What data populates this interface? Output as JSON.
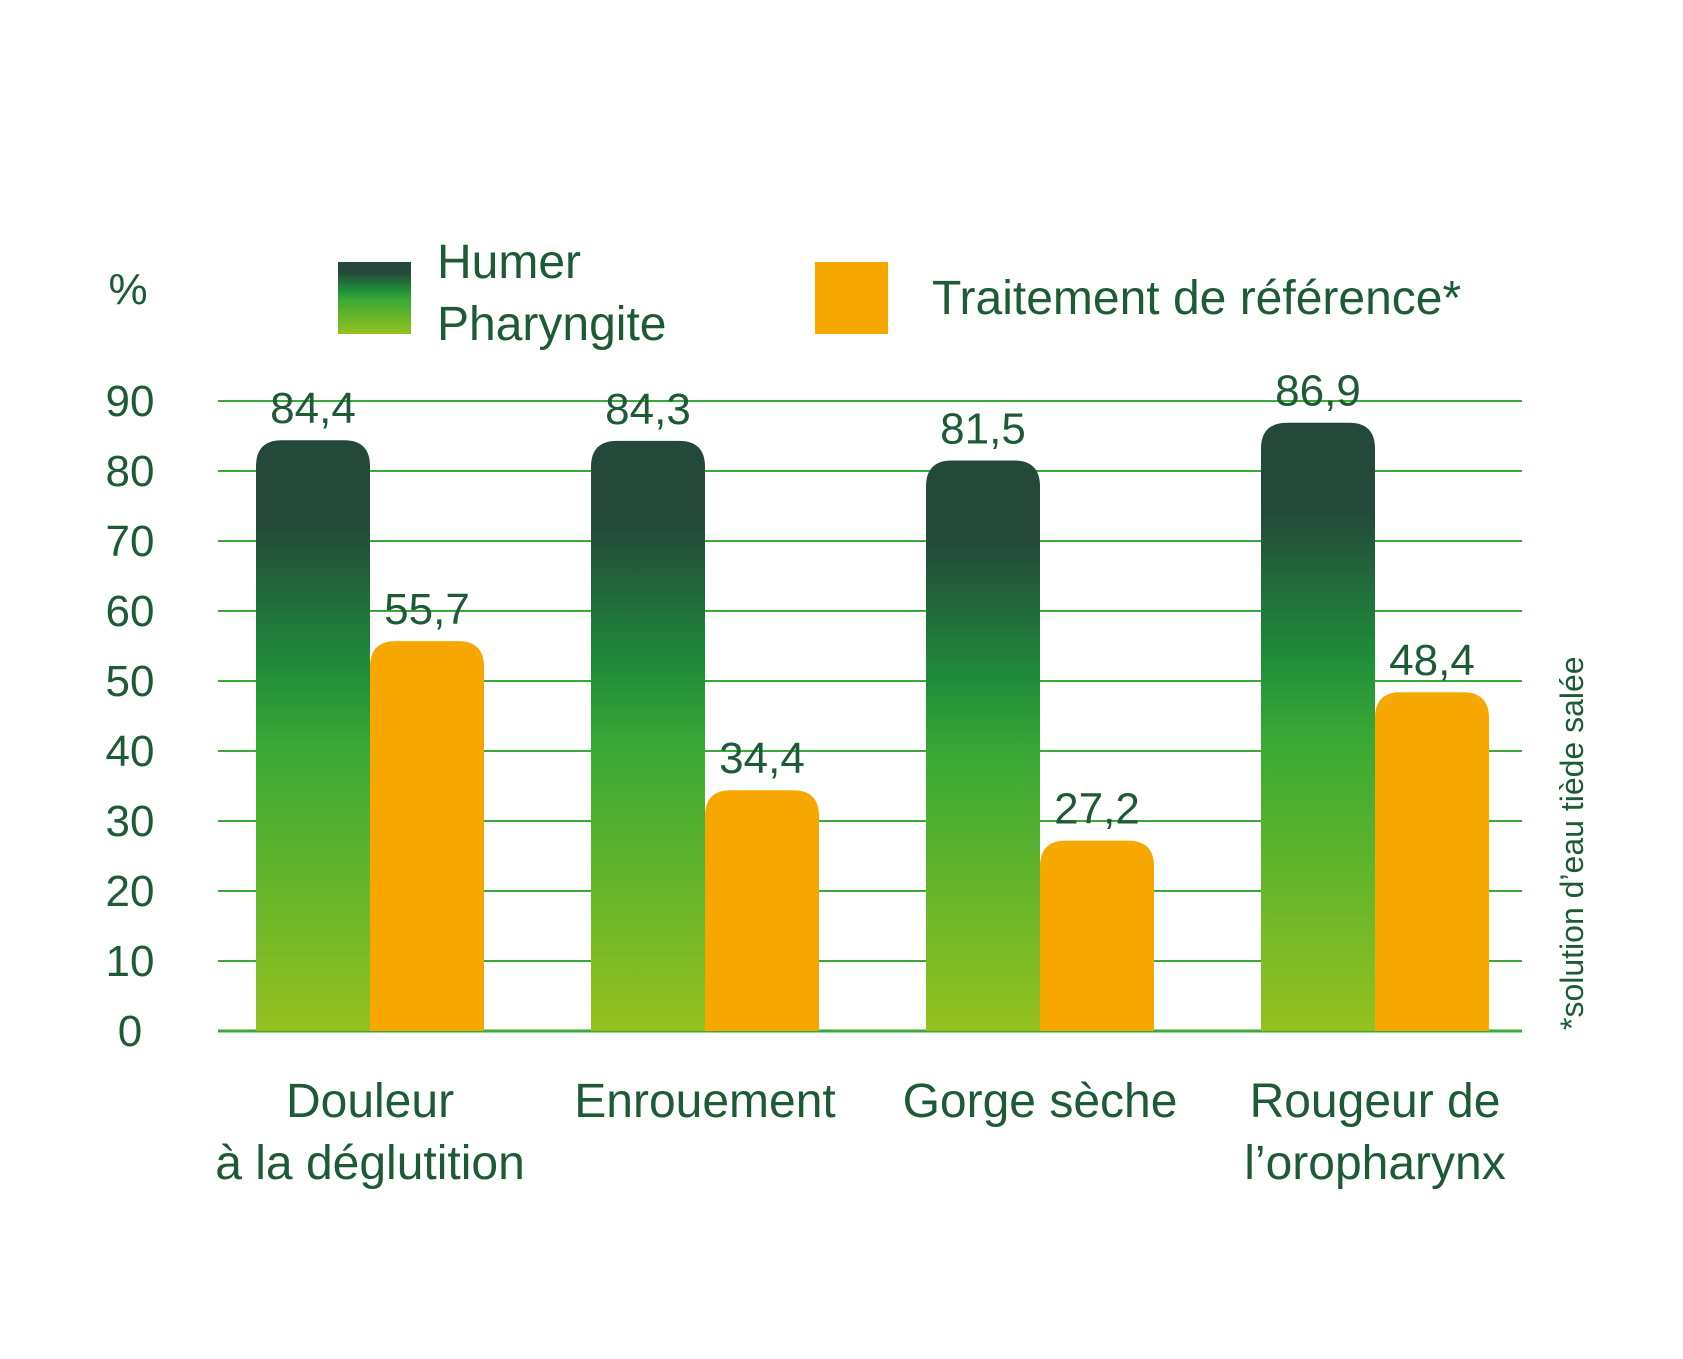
{
  "colors": {
    "text": "#1d5b36",
    "grid": "#3aa935",
    "humer_top": "#24483a",
    "humer_mid": "#1f8b3a",
    "humer_bottom": "#95c11f",
    "reference": "#f6a800"
  },
  "chart_data": {
    "type": "bar",
    "ylabel": "%",
    "ylim": [
      0,
      90
    ],
    "yticks": [
      0,
      10,
      20,
      30,
      40,
      50,
      60,
      70,
      80,
      90
    ],
    "categories": [
      "Douleur\nà la déglutition",
      "Enrouement",
      "Gorge sèche",
      "Rougeur de\nl’oropharynx"
    ],
    "series": [
      {
        "name": "Humer\nPharyngite",
        "values": [
          84.4,
          84.3,
          81.5,
          86.9
        ],
        "labels": [
          "84,4",
          "84,3",
          "81,5",
          "86,9"
        ]
      },
      {
        "name": "Traitement de référence*",
        "values": [
          55.7,
          34.4,
          27.2,
          48.4
        ],
        "labels": [
          "55,7",
          "34,4",
          "27,2",
          "48,4"
        ]
      }
    ],
    "legend_position": "top",
    "grid": true,
    "footnote": "*solution d’eau tiède salée"
  }
}
